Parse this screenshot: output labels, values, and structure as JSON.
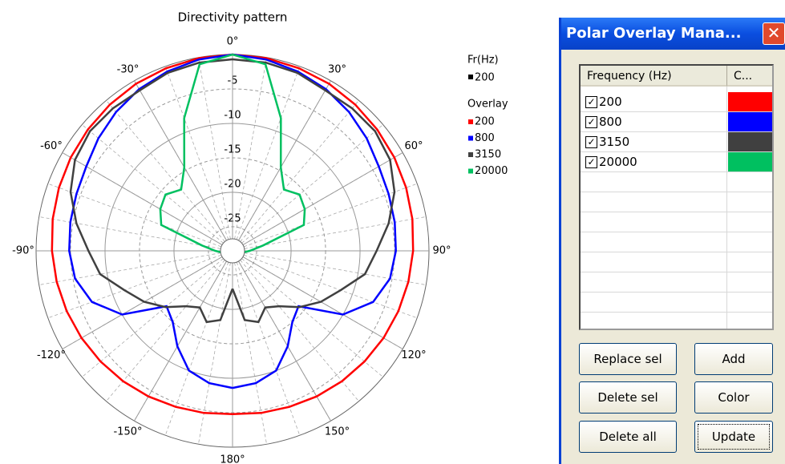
{
  "chart_data": {
    "type": "polar",
    "title": "Directivity pattern",
    "rlim": [
      -28.5,
      0
    ],
    "rticks": [
      -25,
      -20,
      -15,
      -10,
      -5
    ],
    "thetaticks": [
      {
        "value": 0,
        "label": "0°"
      },
      {
        "value": 30,
        "label": "30°"
      },
      {
        "value": 60,
        "label": "60°"
      },
      {
        "value": 90,
        "label": "90°"
      },
      {
        "value": 120,
        "label": "120°"
      },
      {
        "value": 150,
        "label": "150°"
      },
      {
        "value": 180,
        "label": "180°"
      },
      {
        "value": -150,
        "label": "-150°"
      },
      {
        "value": -120,
        "label": "-120°"
      },
      {
        "value": -90,
        "label": "-90°"
      },
      {
        "value": -60,
        "label": "-60°"
      },
      {
        "value": -30,
        "label": "-30°"
      }
    ],
    "legend_current_title": "Fr(Hz)",
    "current": {
      "name": "200",
      "color": "#000000"
    },
    "legend_overlay_title": "Overlay",
    "theta": [
      -180,
      -170,
      -160,
      -150,
      -140,
      -130,
      -120,
      -110,
      -100,
      -90,
      -80,
      -70,
      -60,
      -50,
      -40,
      -30,
      -20,
      -10,
      0,
      10,
      20,
      30,
      40,
      50,
      60,
      70,
      80,
      90,
      100,
      110,
      120,
      130,
      140,
      150,
      160,
      170,
      180
    ],
    "series": [
      {
        "name": "200",
        "color": "#ff0000",
        "values": [
          -4.8,
          -4.6,
          -4.4,
          -4.1,
          -3.8,
          -3.5,
          -3.2,
          -2.9,
          -2.6,
          -2.3,
          -2.0,
          -1.7,
          -1.4,
          -1.1,
          -0.8,
          -0.5,
          -0.3,
          -0.1,
          0,
          -0.1,
          -0.3,
          -0.5,
          -0.8,
          -1.1,
          -1.4,
          -1.7,
          -2.0,
          -2.3,
          -2.6,
          -2.9,
          -3.2,
          -3.5,
          -3.8,
          -4.1,
          -4.4,
          -4.6,
          -4.8
        ]
      },
      {
        "name": "800",
        "color": "#0000ff",
        "values": [
          -8.6,
          -9,
          -10,
          -12.5,
          -15,
          -16,
          -10,
          -6.8,
          -5.3,
          -4.8,
          -4.6,
          -4.4,
          -4.0,
          -3.1,
          -2.2,
          -1.4,
          -0.8,
          -0.3,
          0,
          -0.3,
          -0.8,
          -1.4,
          -2.2,
          -3.1,
          -4.0,
          -4.4,
          -4.6,
          -4.8,
          -5.3,
          -6.8,
          -10,
          -16,
          -15,
          -12.5,
          -10,
          -9,
          -8.6
        ]
      },
      {
        "name": "3150",
        "color": "#404040",
        "values": [
          -23,
          -18.3,
          -17.5,
          -19,
          -18,
          -15.8,
          -13.7,
          -11.8,
          -9,
          -7.6,
          -5.5,
          -3.5,
          -2.1,
          -1.5,
          -1.5,
          -1.6,
          -1.0,
          -0.75,
          -0.7,
          -0.75,
          -1.0,
          -1.6,
          -1.5,
          -1.5,
          -2.1,
          -3.5,
          -5.5,
          -7.6,
          -9,
          -11.8,
          -13.7,
          -15.8,
          -18,
          -19,
          -17.5,
          -18.3,
          -23
        ]
      },
      {
        "name": "20000",
        "color": "#00c060",
        "values": [
          -27,
          -27,
          -27,
          -27,
          -27,
          -27,
          -27,
          -27,
          -27,
          -26,
          -24,
          -17.5,
          -16.4,
          -15.8,
          -16.9,
          -14.5,
          -8,
          -1,
          0,
          -1,
          -8,
          -14.5,
          -16.9,
          -15.8,
          -16.4,
          -17.5,
          -24,
          -26,
          -27,
          -27,
          -27,
          -27,
          -27,
          -27,
          -27,
          -27,
          -27
        ]
      }
    ]
  },
  "dialog": {
    "title": "Polar Overlay Mana...",
    "columns": [
      "Frequency (Hz)",
      "C..."
    ],
    "rows": [
      {
        "frequency": "200",
        "color": "#ff0000"
      },
      {
        "frequency": "800",
        "color": "#0000ff"
      },
      {
        "frequency": "3150",
        "color": "#404040"
      },
      {
        "frequency": "20000",
        "color": "#00c060"
      }
    ],
    "buttons": [
      "Replace sel",
      "Add",
      "Delete sel",
      "Color",
      "Delete all",
      "Update"
    ]
  }
}
